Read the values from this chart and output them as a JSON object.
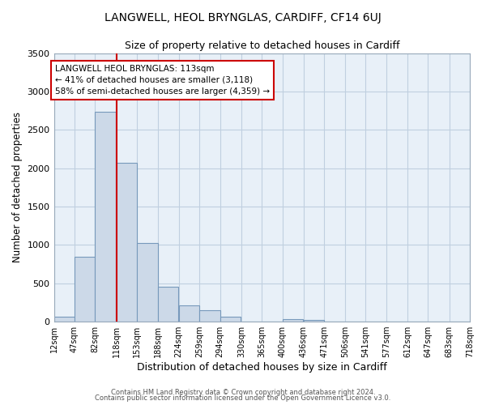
{
  "title": "LANGWELL, HEOL BRYNGLAS, CARDIFF, CF14 6UJ",
  "subtitle": "Size of property relative to detached houses in Cardiff",
  "xlabel": "Distribution of detached houses by size in Cardiff",
  "ylabel": "Number of detached properties",
  "bar_color": "#ccd9e8",
  "bar_edge_color": "#7799bb",
  "plot_bg_color": "#e8f0f8",
  "figure_bg_color": "#ffffff",
  "grid_color": "#c0cfe0",
  "bins": [
    12,
    47,
    82,
    118,
    153,
    188,
    224,
    259,
    294,
    330,
    365,
    400,
    436,
    471,
    506,
    541,
    577,
    612,
    647,
    683,
    718
  ],
  "bin_labels": [
    "12sqm",
    "47sqm",
    "82sqm",
    "118sqm",
    "153sqm",
    "188sqm",
    "224sqm",
    "259sqm",
    "294sqm",
    "330sqm",
    "365sqm",
    "400sqm",
    "436sqm",
    "471sqm",
    "506sqm",
    "541sqm",
    "577sqm",
    "612sqm",
    "647sqm",
    "683sqm",
    "718sqm"
  ],
  "values": [
    60,
    850,
    2730,
    2075,
    1020,
    455,
    210,
    150,
    60,
    0,
    0,
    35,
    20,
    5,
    0,
    0,
    0,
    0,
    0,
    0
  ],
  "property_line_x": 118,
  "property_line_color": "#cc0000",
  "annotation_text": "LANGWELL HEOL BRYNGLAS: 113sqm\n← 41% of detached houses are smaller (3,118)\n58% of semi-detached houses are larger (4,359) →",
  "annotation_box_color": "#ffffff",
  "annotation_box_edgecolor": "#cc0000",
  "footer_line1": "Contains HM Land Registry data © Crown copyright and database right 2024.",
  "footer_line2": "Contains public sector information licensed under the Open Government Licence v3.0.",
  "ylim": [
    0,
    3500
  ],
  "yticks": [
    0,
    500,
    1000,
    1500,
    2000,
    2500,
    3000,
    3500
  ]
}
